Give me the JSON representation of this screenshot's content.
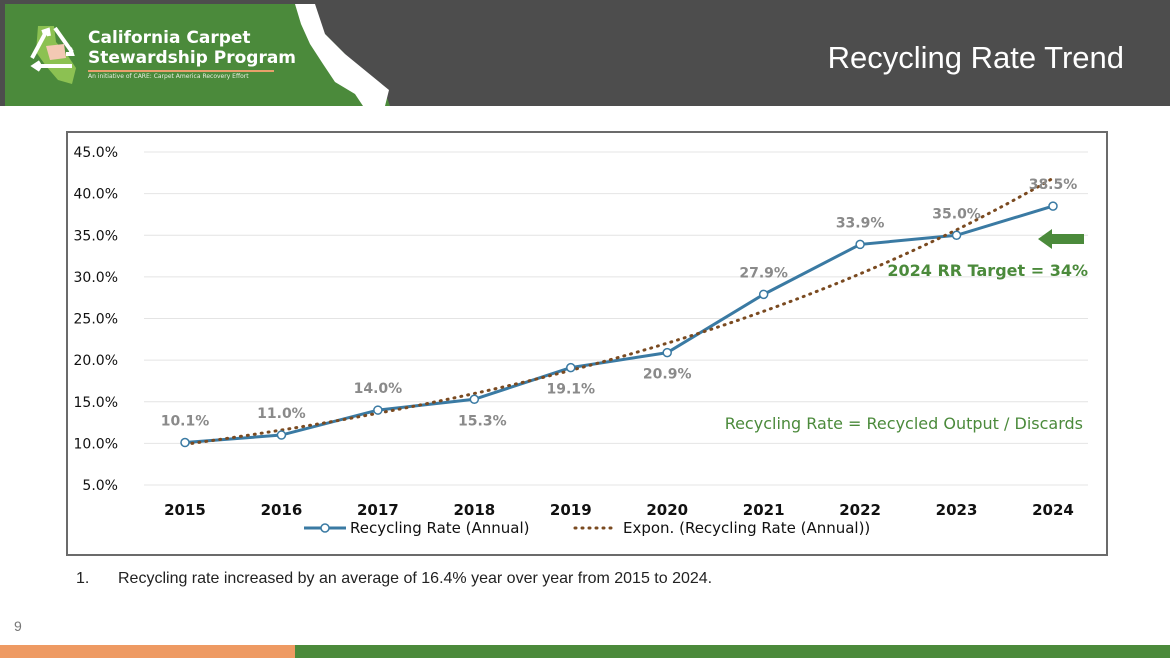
{
  "header": {
    "logo_title_line1": "California Carpet",
    "logo_title_line2": "Stewardship Program",
    "logo_subtitle": "An initiative of CARE: Carpet America Recovery Effort",
    "slide_title": "Recycling Rate Trend"
  },
  "colors": {
    "header_bg": "#4d4d4d",
    "brand_green": "#4b8a3b",
    "series_line": "#3a7aa3",
    "trend_dots": "#7a4a20",
    "annotation_green": "#4b8a3b",
    "label_gray": "#8a8a8a",
    "footer_orange": "#ee9a63"
  },
  "chart_data": {
    "type": "line",
    "categories": [
      "2015",
      "2016",
      "2017",
      "2018",
      "2019",
      "2020",
      "2021",
      "2022",
      "2023",
      "2024"
    ],
    "series": [
      {
        "name": "Recycling Rate (Annual)",
        "values": [
          10.1,
          11.0,
          14.0,
          15.3,
          19.1,
          20.9,
          27.9,
          33.9,
          35.0,
          38.5
        ],
        "data_labels": [
          "10.1%",
          "11.0%",
          "14.0%",
          "15.3%",
          "19.1%",
          "20.9%",
          "27.9%",
          "33.9%",
          "35.0%",
          "38.5%"
        ]
      }
    ],
    "trendline": {
      "name": "Expon. (Recycling Rate (Annual))",
      "type": "exponential",
      "of": "Recycling Rate (Annual)"
    },
    "y_ticks": [
      "5.0%",
      "10.0%",
      "15.0%",
      "20.0%",
      "25.0%",
      "30.0%",
      "35.0%",
      "40.0%",
      "45.0%"
    ],
    "ylim": [
      5,
      45
    ],
    "grid": "horizontal",
    "legend_position": "bottom",
    "annotations": {
      "target": "2024 RR Target = 34%",
      "formula": "Recycling Rate = Recycled Output / Discards",
      "arrow_icon": "left-arrow-icon"
    }
  },
  "notes": [
    {
      "num": "1.",
      "text": "Recycling rate increased by an average of 16.4% year over year from 2015 to 2024."
    }
  ],
  "page_number": "9"
}
